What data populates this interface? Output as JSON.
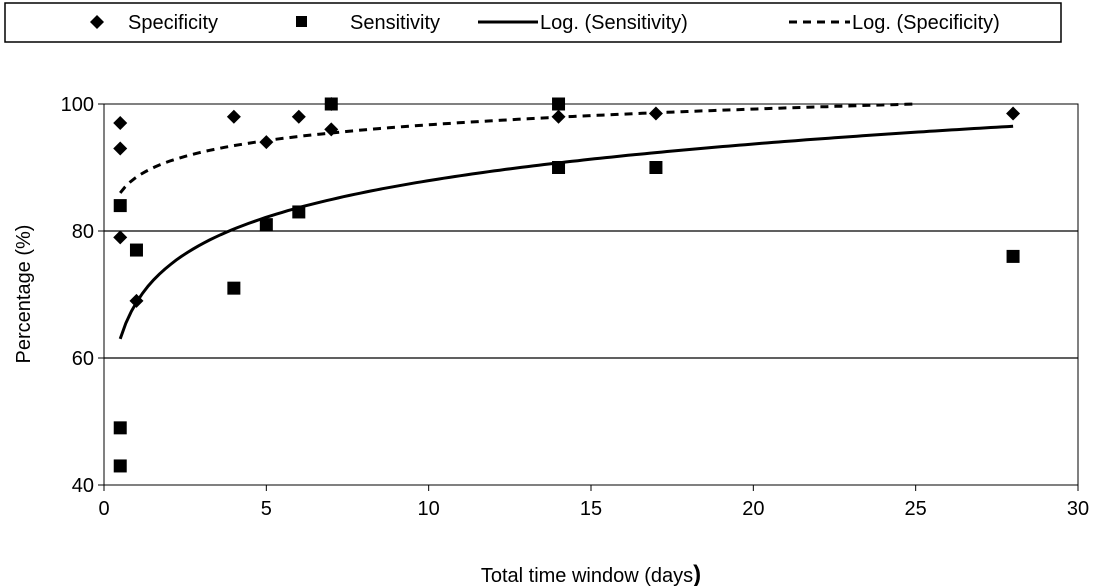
{
  "chart_data": {
    "type": "scatter",
    "xlabel": "Total time window (days",
    "xlabel_suffix": ")",
    "ylabel": "Percentage (%)",
    "xlim": [
      0,
      30
    ],
    "ylim": [
      40,
      100
    ],
    "x_ticks": [
      0,
      5,
      10,
      15,
      20,
      25,
      30
    ],
    "y_ticks": [
      40,
      60,
      80,
      100
    ],
    "grid": "horizontal major gridlines",
    "legend_position": "top",
    "colors": {
      "points": "#000000",
      "lines": "#000000",
      "background": "#ffffff"
    },
    "series": [
      {
        "name": "Specificity",
        "marker": "diamond",
        "points": [
          [
            0.5,
            97
          ],
          [
            0.5,
            93
          ],
          [
            0.5,
            79
          ],
          [
            1,
            69
          ],
          [
            4,
            98
          ],
          [
            5,
            94
          ],
          [
            6,
            98
          ],
          [
            7,
            96
          ],
          [
            7,
            100
          ],
          [
            14,
            98
          ],
          [
            17,
            98.5
          ],
          [
            28,
            98.5
          ]
        ]
      },
      {
        "name": "Sensitivity",
        "marker": "square",
        "points": [
          [
            0.5,
            84
          ],
          [
            0.5,
            49
          ],
          [
            0.5,
            43
          ],
          [
            1,
            77
          ],
          [
            4,
            71
          ],
          [
            5,
            81
          ],
          [
            6,
            83
          ],
          [
            7,
            100
          ],
          [
            14,
            100
          ],
          [
            14,
            90
          ],
          [
            17,
            90
          ],
          [
            28,
            76
          ]
        ]
      }
    ],
    "trendlines": [
      {
        "name": "Log. (Sensitivity)",
        "style": "solid",
        "type": "logarithmic",
        "x_range": [
          0.5,
          28
        ],
        "y_at_start": 63,
        "y_at_end": 96.5
      },
      {
        "name": "Log. (Specificity)",
        "style": "dashed",
        "type": "logarithmic",
        "x_range": [
          0.5,
          25
        ],
        "y_at_start": 86,
        "y_at_end": 100
      }
    ]
  }
}
